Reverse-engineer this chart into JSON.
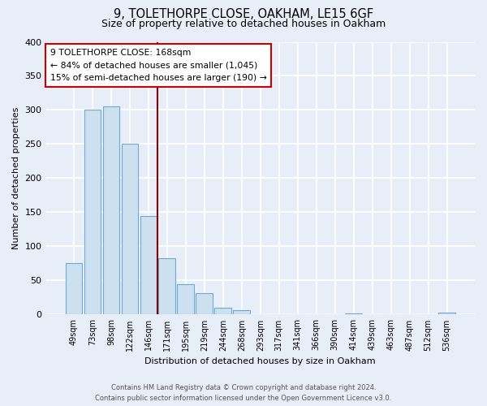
{
  "title": "9, TOLETHORPE CLOSE, OAKHAM, LE15 6GF",
  "subtitle": "Size of property relative to detached houses in Oakham",
  "xlabel": "Distribution of detached houses by size in Oakham",
  "ylabel": "Number of detached properties",
  "bar_labels": [
    "49sqm",
    "73sqm",
    "98sqm",
    "122sqm",
    "146sqm",
    "171sqm",
    "195sqm",
    "219sqm",
    "244sqm",
    "268sqm",
    "293sqm",
    "317sqm",
    "341sqm",
    "366sqm",
    "390sqm",
    "414sqm",
    "439sqm",
    "463sqm",
    "487sqm",
    "512sqm",
    "536sqm"
  ],
  "bar_values": [
    75,
    300,
    305,
    250,
    145,
    83,
    44,
    32,
    10,
    6,
    0,
    0,
    0,
    0,
    0,
    2,
    0,
    0,
    0,
    0,
    3
  ],
  "bar_color": "#cce0f0",
  "bar_edge_color": "#6aaad4",
  "vline_color": "#8b0000",
  "annotation_title": "9 TOLETHORPE CLOSE: 168sqm",
  "annotation_line1": "← 84% of detached houses are smaller (1,045)",
  "annotation_line2": "15% of semi-detached houses are larger (190) →",
  "annotation_box_facecolor": "#ffffff",
  "annotation_box_edgecolor": "#cc0000",
  "ylim": [
    0,
    400
  ],
  "yticks": [
    0,
    50,
    100,
    150,
    200,
    250,
    300,
    350,
    400
  ],
  "footer_line1": "Contains HM Land Registry data © Crown copyright and database right 2024.",
  "footer_line2": "Contains public sector information licensed under the Open Government Licence v3.0.",
  "bg_color": "#e8eef8",
  "plot_bg_color": "#e8eef8",
  "grid_color": "#ffffff",
  "vline_x_index": 5
}
